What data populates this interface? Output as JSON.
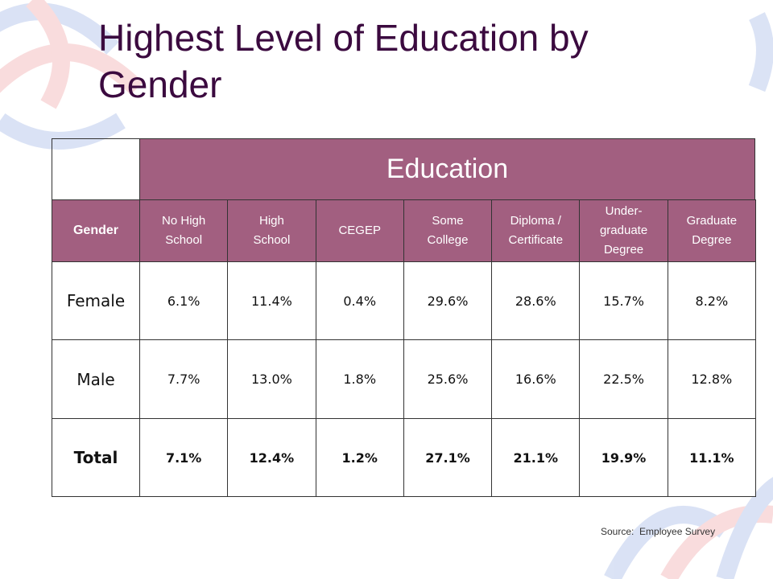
{
  "title": "Highest Level of Education by Gender",
  "table": {
    "group_header": "Education",
    "corner_header": "Gender",
    "columns": [
      "No High School",
      "High School",
      "CEGEP",
      "Some College",
      "Diploma / Certificate",
      "Under-graduate Degree",
      "Graduate Degree"
    ],
    "rows": [
      {
        "label": "Female",
        "cells": [
          "6.1%",
          "11.4%",
          "0.4%",
          "29.6%",
          "28.6%",
          "15.7%",
          "8.2%"
        ]
      },
      {
        "label": "Male",
        "cells": [
          "7.7%",
          "13.0%",
          "1.8%",
          "25.6%",
          "16.6%",
          "22.5%",
          "12.8%"
        ]
      },
      {
        "label": "Total",
        "cells": [
          "7.1%",
          "12.4%",
          "1.2%",
          "27.1%",
          "21.1%",
          "19.9%",
          "11.1%"
        ]
      }
    ]
  },
  "source": "Source:  Employee Survey"
}
